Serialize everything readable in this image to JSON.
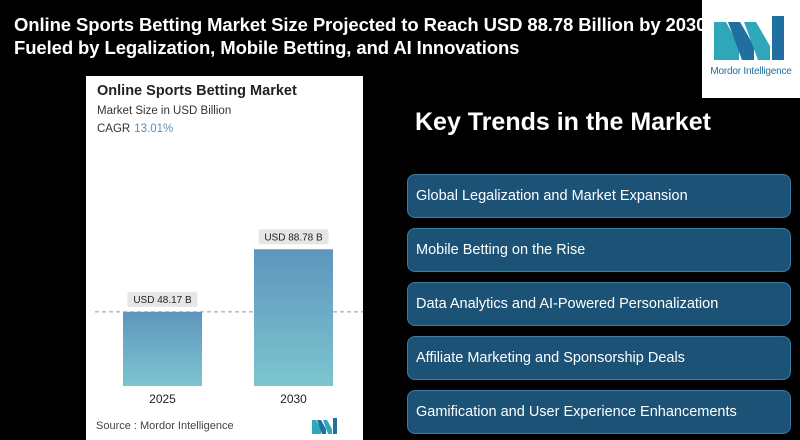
{
  "headline": {
    "line1": "Online Sports Betting Market Size Projected to Reach USD 88.78 Billion by 2030,",
    "line2": "Fueled by Legalization, Mobile Betting, and AI Innovations"
  },
  "logo": {
    "text": "Mordor Intelligence",
    "icon": "mordor-intelligence-logo"
  },
  "chart_card": {
    "title": "Online Sports Betting Market",
    "subtitle": "Market Size in USD Billion",
    "cagr_label": "CAGR",
    "cagr_value": "13.01%",
    "source": "Source :  Mordor Intelligence"
  },
  "chart_data": {
    "type": "bar",
    "title": "Online Sports Betting Market",
    "ylabel": "Market Size in USD Billion",
    "categories": [
      "2025",
      "2030"
    ],
    "values": [
      48.17,
      88.78
    ],
    "data_labels": [
      "USD 48.17 B",
      "USD 88.78 B"
    ],
    "ylim": [
      0,
      100
    ],
    "reference_line": 48.17,
    "colors": {
      "bar_top": "#5f95bd",
      "bar_bottom": "#7cc5cf",
      "label_bg": "#e6e6e6"
    }
  },
  "trends": {
    "title": "Key Trends in the Market",
    "items": [
      "Global Legalization and Market Expansion",
      "Mobile Betting on the Rise",
      "Data Analytics and AI-Powered Personalization",
      "Affiliate Marketing and Sponsorship Deals",
      "Gamification and User Experience Enhancements"
    ]
  },
  "colors": {
    "background": "#000000",
    "trend_box": "#1b5275",
    "trend_border": "#3b7ca3",
    "accent": "#1f6fa0"
  }
}
